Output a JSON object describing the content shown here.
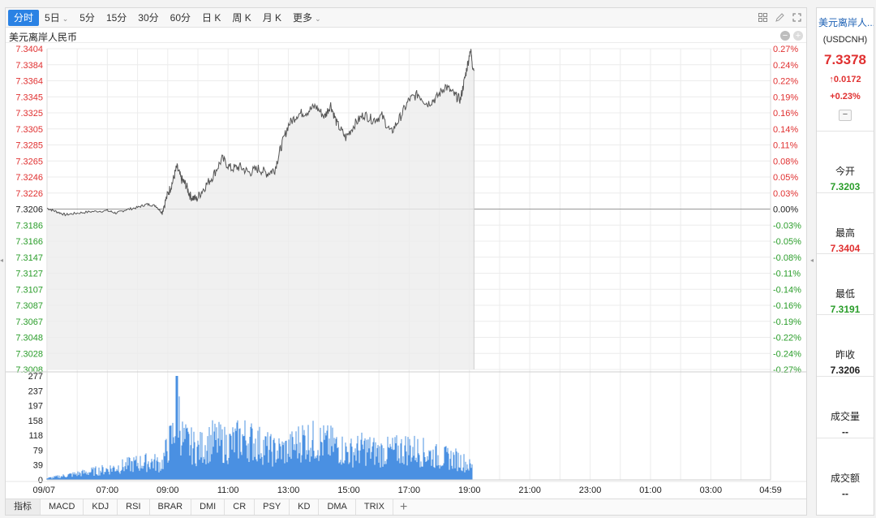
{
  "toolbar": {
    "tabs": [
      {
        "label": "分时",
        "caret": false
      },
      {
        "label": "5日",
        "caret": true
      },
      {
        "label": "5分",
        "caret": false
      },
      {
        "label": "15分",
        "caret": false
      },
      {
        "label": "30分",
        "caret": false
      },
      {
        "label": "60分",
        "caret": false
      },
      {
        "label": "日 K",
        "caret": false
      },
      {
        "label": "周 K",
        "caret": false
      },
      {
        "label": "月 K",
        "caret": false
      },
      {
        "label": "更多",
        "caret": true
      }
    ],
    "caret_glyph": "⌄",
    "right_icons": [
      "grid-icon",
      "pencil-icon",
      "expand-icon"
    ]
  },
  "chart_header": {
    "title": "美元离岸人民币",
    "minus_glyph": "−",
    "plus_glyph": "+"
  },
  "colors": {
    "up": "#e03030",
    "down": "#2a9d2a",
    "neutral": "#222222",
    "price_line": "#555555",
    "area_fill": "#ececec",
    "volume": "#4a90e2",
    "grid": "#ececec"
  },
  "chart_data": {
    "type": "line",
    "base_price": 7.3206,
    "price_axis": {
      "ticks": [
        "7.3404",
        "7.3384",
        "7.3364",
        "7.3345",
        "7.3325",
        "7.3305",
        "7.3285",
        "7.3265",
        "7.3246",
        "7.3226",
        "7.3206",
        "7.3186",
        "7.3166",
        "7.3147",
        "7.3127",
        "7.3107",
        "7.3087",
        "7.3067",
        "7.3048",
        "7.3028",
        "7.3008"
      ],
      "range": [
        7.3008,
        7.3404
      ]
    },
    "pct_axis": {
      "ticks": [
        "0.27%",
        "0.24%",
        "0.22%",
        "0.19%",
        "0.16%",
        "0.14%",
        "0.11%",
        "0.08%",
        "0.05%",
        "0.03%",
        "0.00%",
        "-0.03%",
        "-0.05%",
        "-0.08%",
        "-0.11%",
        "-0.14%",
        "-0.16%",
        "-0.19%",
        "-0.22%",
        "-0.24%",
        "-0.27%"
      ]
    },
    "volume_axis": {
      "ticks": [
        "277",
        "237",
        "197",
        "158",
        "118",
        "79",
        "39",
        "0"
      ],
      "range": [
        0,
        277
      ]
    },
    "time_axis": {
      "labels": [
        "09/07",
        "07:00",
        "09:00",
        "11:00",
        "13:00",
        "15:00",
        "17:00",
        "19:00",
        "21:00",
        "23:00",
        "01:00",
        "03:00",
        "04:59"
      ],
      "range_hours": [
        5,
        28.98
      ]
    },
    "price_series": [
      {
        "t": 5.0,
        "v": 7.3207
      },
      {
        "t": 5.3,
        "v": 7.3203
      },
      {
        "t": 5.6,
        "v": 7.3199
      },
      {
        "t": 6.0,
        "v": 7.3201
      },
      {
        "t": 6.5,
        "v": 7.3203
      },
      {
        "t": 7.0,
        "v": 7.3204
      },
      {
        "t": 7.3,
        "v": 7.3201
      },
      {
        "t": 7.6,
        "v": 7.3205
      },
      {
        "t": 8.0,
        "v": 7.3208
      },
      {
        "t": 8.3,
        "v": 7.3212
      },
      {
        "t": 8.6,
        "v": 7.321
      },
      {
        "t": 8.8,
        "v": 7.3202
      },
      {
        "t": 9.0,
        "v": 7.3224
      },
      {
        "t": 9.15,
        "v": 7.3238
      },
      {
        "t": 9.3,
        "v": 7.3258
      },
      {
        "t": 9.45,
        "v": 7.3243
      },
      {
        "t": 9.6,
        "v": 7.3236
      },
      {
        "t": 9.75,
        "v": 7.3222
      },
      {
        "t": 9.95,
        "v": 7.3218
      },
      {
        "t": 10.2,
        "v": 7.3232
      },
      {
        "t": 10.5,
        "v": 7.3247
      },
      {
        "t": 10.8,
        "v": 7.3268
      },
      {
        "t": 11.1,
        "v": 7.3256
      },
      {
        "t": 11.4,
        "v": 7.3258
      },
      {
        "t": 11.7,
        "v": 7.3251
      },
      {
        "t": 12.0,
        "v": 7.3256
      },
      {
        "t": 12.3,
        "v": 7.325
      },
      {
        "t": 12.55,
        "v": 7.3255
      },
      {
        "t": 12.75,
        "v": 7.3282
      },
      {
        "t": 13.0,
        "v": 7.331
      },
      {
        "t": 13.3,
        "v": 7.3323
      },
      {
        "t": 13.6,
        "v": 7.3326
      },
      {
        "t": 13.9,
        "v": 7.3333
      },
      {
        "t": 14.2,
        "v": 7.332
      },
      {
        "t": 14.4,
        "v": 7.3335
      },
      {
        "t": 14.6,
        "v": 7.3312
      },
      {
        "t": 14.9,
        "v": 7.3294
      },
      {
        "t": 15.2,
        "v": 7.3311
      },
      {
        "t": 15.5,
        "v": 7.3323
      },
      {
        "t": 15.8,
        "v": 7.3316
      },
      {
        "t": 16.1,
        "v": 7.3321
      },
      {
        "t": 16.4,
        "v": 7.33
      },
      {
        "t": 16.7,
        "v": 7.3319
      },
      {
        "t": 17.0,
        "v": 7.3341
      },
      {
        "t": 17.3,
        "v": 7.3348
      },
      {
        "t": 17.6,
        "v": 7.3336
      },
      {
        "t": 17.9,
        "v": 7.3343
      },
      {
        "t": 18.2,
        "v": 7.3358
      },
      {
        "t": 18.5,
        "v": 7.3347
      },
      {
        "t": 18.7,
        "v": 7.3341
      },
      {
        "t": 18.85,
        "v": 7.3368
      },
      {
        "t": 19.0,
        "v": 7.3396
      },
      {
        "t": 19.05,
        "v": 7.3404
      },
      {
        "t": 19.1,
        "v": 7.338
      },
      {
        "t": 19.15,
        "v": 7.3378
      }
    ],
    "volume_series": [
      {
        "t": 5.0,
        "v": 5
      },
      {
        "t": 6.0,
        "v": 20
      },
      {
        "t": 7.0,
        "v": 35
      },
      {
        "t": 7.5,
        "v": 45
      },
      {
        "t": 8.0,
        "v": 55
      },
      {
        "t": 8.5,
        "v": 60
      },
      {
        "t": 8.8,
        "v": 50
      },
      {
        "t": 9.0,
        "v": 110
      },
      {
        "t": 9.2,
        "v": 150
      },
      {
        "t": 9.3,
        "v": 277
      },
      {
        "t": 9.5,
        "v": 130
      },
      {
        "t": 10.0,
        "v": 100
      },
      {
        "t": 10.5,
        "v": 130
      },
      {
        "t": 11.0,
        "v": 115
      },
      {
        "t": 11.5,
        "v": 140
      },
      {
        "t": 12.0,
        "v": 120
      },
      {
        "t": 12.5,
        "v": 95
      },
      {
        "t": 13.0,
        "v": 100
      },
      {
        "t": 13.5,
        "v": 135
      },
      {
        "t": 14.0,
        "v": 125
      },
      {
        "t": 14.5,
        "v": 115
      },
      {
        "t": 15.0,
        "v": 90
      },
      {
        "t": 15.5,
        "v": 105
      },
      {
        "t": 16.0,
        "v": 90
      },
      {
        "t": 16.5,
        "v": 95
      },
      {
        "t": 17.0,
        "v": 105
      },
      {
        "t": 17.5,
        "v": 90
      },
      {
        "t": 18.0,
        "v": 75
      },
      {
        "t": 18.5,
        "v": 70
      },
      {
        "t": 18.8,
        "v": 60
      },
      {
        "t": 19.1,
        "v": 40
      }
    ]
  },
  "indicators": {
    "label": "指标",
    "tabs": [
      "MACD",
      "KDJ",
      "RSI",
      "BRAR",
      "DMI",
      "CR",
      "PSY",
      "KD",
      "DMA",
      "TRIX"
    ],
    "add_glyph": "+"
  },
  "side_arrows": {
    "left": "◂",
    "right": "◂"
  },
  "quote": {
    "name": "美元离岸人...",
    "code": "(USDCNH)",
    "price": "7.3378",
    "change": "0.0172",
    "change_arrow": "↑",
    "change_pct": "+0.23%",
    "collapse_glyph": "−",
    "stats": [
      {
        "label": "今开",
        "value": "7.3203",
        "color": "green"
      },
      {
        "label": "最高",
        "value": "7.3404",
        "color": "red"
      },
      {
        "label": "最低",
        "value": "7.3191",
        "color": "green"
      },
      {
        "label": "昨收",
        "value": "7.3206",
        "color": "black"
      },
      {
        "label": "成交量",
        "value": "--",
        "color": "black"
      },
      {
        "label": "成交额",
        "value": "--",
        "color": "black"
      }
    ]
  }
}
